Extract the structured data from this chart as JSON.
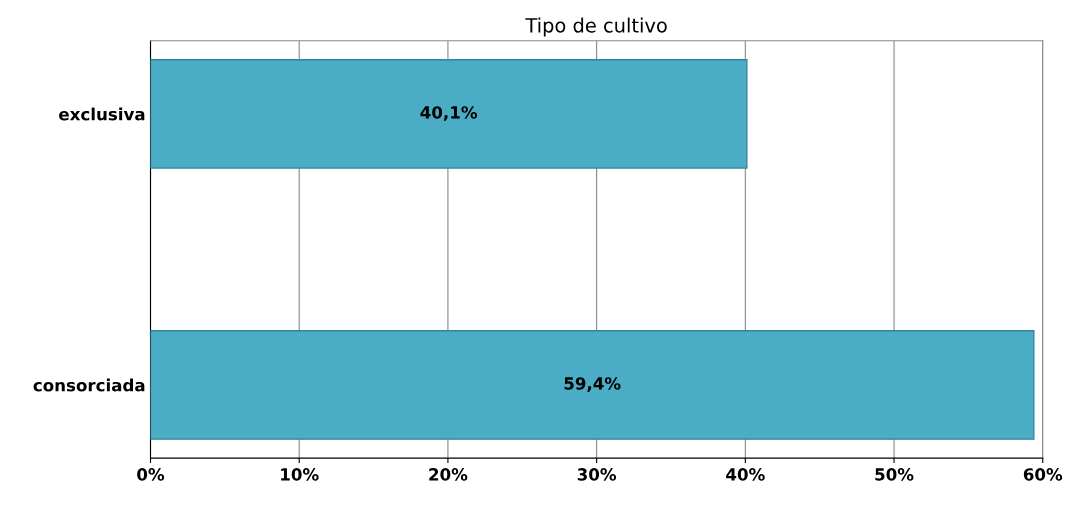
{
  "chart_data": {
    "type": "bar",
    "orientation": "horizontal",
    "title": "Tipo de cultivo",
    "categories": [
      "exclusiva",
      "consorciada"
    ],
    "values": [
      40.1,
      59.4
    ],
    "value_labels": [
      "40,1%",
      "59,4%"
    ],
    "color": "#4bacc6",
    "xlim": [
      0,
      60
    ],
    "xticks": [
      {
        "value": 0,
        "label": "0%"
      },
      {
        "value": 10,
        "label": "10%"
      },
      {
        "value": 20,
        "label": "20%"
      },
      {
        "value": 30,
        "label": "30%"
      },
      {
        "value": 40,
        "label": "40%"
      },
      {
        "value": 50,
        "label": "50%"
      },
      {
        "value": 60,
        "label": "60%"
      }
    ],
    "grid": "x",
    "legend": false
  }
}
